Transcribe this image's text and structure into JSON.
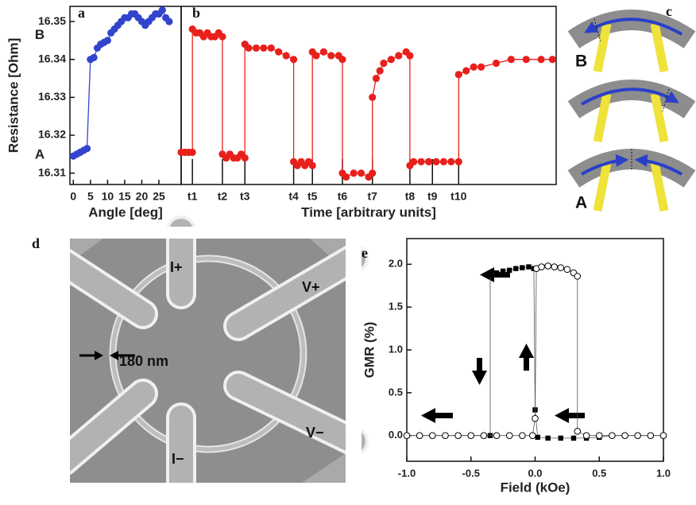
{
  "chart_data": [
    {
      "type": "line",
      "panel": "a",
      "marker": "circle",
      "color": "#3344cc",
      "x": [
        0,
        1,
        2,
        3,
        4,
        5,
        6,
        7,
        8,
        9,
        10,
        11,
        12,
        13,
        14,
        15,
        16,
        17,
        18,
        19,
        20,
        21,
        22,
        23,
        24,
        25,
        26,
        27,
        28
      ],
      "values": [
        16.3145,
        16.315,
        16.3155,
        16.316,
        16.3165,
        16.34,
        16.3405,
        16.343,
        16.344,
        16.3445,
        16.345,
        16.347,
        16.348,
        16.349,
        16.35,
        16.351,
        16.351,
        16.352,
        16.352,
        16.351,
        16.35,
        16.349,
        16.35,
        16.351,
        16.352,
        16.352,
        16.353,
        16.351,
        16.35
      ],
      "xlim": [
        -1,
        31.5
      ],
      "ylim": [
        16.307,
        16.354
      ],
      "xticks": [
        0,
        5,
        10,
        15,
        20,
        25
      ],
      "yticks": [
        16.31,
        16.32,
        16.33,
        16.34,
        16.35
      ],
      "x_label": "Angle [deg]",
      "y_label": "Resistance [Ohm]",
      "annotations": [
        {
          "text": "B",
          "y": 16.3463
        },
        {
          "text": "A",
          "y": 16.3148
        }
      ]
    },
    {
      "type": "line",
      "panel": "b",
      "marker": "circle",
      "color": "#e8201c",
      "x": [
        0,
        1,
        2,
        3,
        3,
        4,
        5,
        6,
        7,
        8,
        9,
        10,
        11,
        11,
        12,
        13,
        14,
        15,
        16,
        17,
        17,
        18,
        20,
        22,
        24,
        26,
        28,
        30,
        30,
        31,
        32,
        33,
        34,
        35,
        35,
        36,
        38,
        40,
        42,
        43,
        43,
        44,
        46,
        48,
        50,
        51,
        51,
        52,
        53,
        54,
        56,
        58,
        60,
        61,
        61,
        62,
        64,
        66,
        68,
        70,
        72,
        74,
        74,
        76,
        78,
        80,
        84,
        88,
        92,
        96,
        99
      ],
      "values": [
        16.3155,
        16.3155,
        16.3155,
        16.3155,
        16.348,
        16.347,
        16.347,
        16.346,
        16.347,
        16.346,
        16.346,
        16.347,
        16.346,
        16.315,
        16.314,
        16.315,
        16.314,
        16.314,
        16.315,
        16.314,
        16.344,
        16.343,
        16.343,
        16.343,
        16.343,
        16.342,
        16.341,
        16.34,
        16.313,
        16.312,
        16.313,
        16.312,
        16.313,
        16.312,
        16.342,
        16.341,
        16.342,
        16.341,
        16.341,
        16.34,
        16.31,
        16.309,
        16.31,
        16.31,
        16.309,
        16.31,
        16.33,
        16.335,
        16.337,
        16.339,
        16.34,
        16.341,
        16.342,
        16.341,
        16.312,
        16.313,
        16.313,
        16.313,
        16.313,
        16.313,
        16.313,
        16.313,
        16.336,
        16.337,
        16.338,
        16.338,
        16.339,
        16.34,
        16.34,
        16.34,
        16.34
      ],
      "xlim": [
        0,
        100
      ],
      "ylim": [
        16.307,
        16.354
      ],
      "xticks": [
        {
          "value": 3,
          "label": "t1"
        },
        {
          "value": 11,
          "label": "t2"
        },
        {
          "value": 17,
          "label": "t3"
        },
        {
          "value": 30,
          "label": "t4"
        },
        {
          "value": 35,
          "label": "t5"
        },
        {
          "value": 43,
          "label": "t6"
        },
        {
          "value": 51,
          "label": "t7"
        },
        {
          "value": 61,
          "label": "t8"
        },
        {
          "value": 67,
          "label": "t9"
        },
        {
          "value": 74,
          "label": "t10"
        }
      ],
      "x_label": "Time [arbitrary units]"
    },
    {
      "type": "line",
      "panel": "e",
      "series": [
        {
          "marker": "square",
          "color": "#000000",
          "x": [
            1.0,
            0.9,
            0.8,
            0.7,
            0.6,
            0.5,
            0.4,
            0.3,
            0.2,
            0.1,
            0.02,
            0.0,
            -0.01,
            -0.05,
            -0.1,
            -0.15,
            -0.2,
            -0.25,
            -0.3,
            -0.35,
            -0.35,
            -0.4,
            -0.5,
            -0.6,
            -0.7,
            -0.8,
            -0.9,
            -1.0
          ],
          "values": [
            0,
            0,
            0,
            0,
            0,
            -0.02,
            -0.03,
            -0.03,
            -0.03,
            -0.03,
            -0.02,
            0.3,
            1.95,
            1.97,
            1.96,
            1.95,
            1.93,
            1.92,
            1.9,
            1.88,
            0,
            0,
            0,
            0,
            0,
            0,
            0,
            0
          ]
        },
        {
          "marker": "open-circle",
          "color": "#000000",
          "x": [
            -1.0,
            -0.9,
            -0.8,
            -0.7,
            -0.6,
            -0.5,
            -0.4,
            -0.3,
            -0.2,
            -0.1,
            -0.02,
            0.0,
            0.01,
            0.05,
            0.1,
            0.15,
            0.2,
            0.25,
            0.3,
            0.33,
            0.33,
            0.4,
            0.5,
            0.6,
            0.7,
            0.8,
            0.9,
            1.0
          ],
          "values": [
            0,
            0,
            0,
            0,
            0,
            0,
            0,
            0,
            0,
            0,
            0,
            0.2,
            1.95,
            1.97,
            1.98,
            1.97,
            1.96,
            1.94,
            1.9,
            1.86,
            0.05,
            0,
            0,
            0,
            0,
            0,
            0,
            0
          ]
        }
      ],
      "xlim": [
        -1,
        1
      ],
      "ylim": [
        -0.3,
        2.3
      ],
      "xticks": [
        {
          "value": -1,
          "label": "-1.0"
        },
        -0.5,
        {
          "value": 0,
          "label": "0.0"
        },
        0.5,
        {
          "value": 1,
          "label": "1.0"
        }
      ],
      "yticks": [
        {
          "value": 0,
          "label": "0.0"
        },
        0.5,
        {
          "value": 1,
          "label": "1.0"
        },
        1.5,
        {
          "value": 2,
          "label": "2.0"
        }
      ],
      "x_label": "Field (kOe)",
      "y_label": "GMR (%)"
    }
  ],
  "panel_c": {
    "panel": "c",
    "labels": [
      "B",
      "A"
    ]
  },
  "panel_d": {
    "panel": "d",
    "labels": [
      "I+",
      "V+",
      "180 nm",
      "V−",
      "I−"
    ]
  }
}
